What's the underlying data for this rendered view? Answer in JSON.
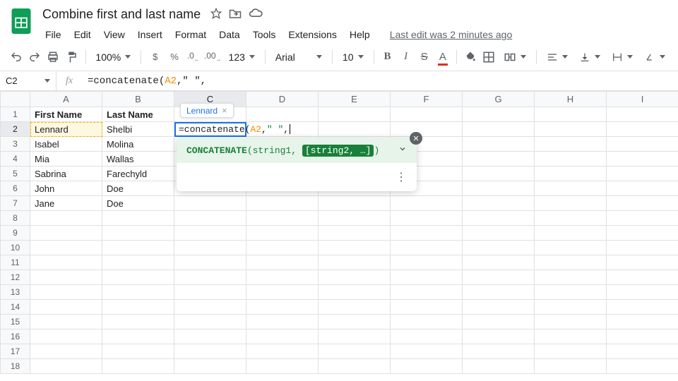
{
  "header": {
    "doc_title": "Combine first and last name",
    "menus": [
      "File",
      "Edit",
      "View",
      "Insert",
      "Format",
      "Data",
      "Tools",
      "Extensions",
      "Help"
    ],
    "last_edit": "Last edit was 2 minutes ago"
  },
  "toolbar": {
    "zoom": "100%",
    "currency": "$",
    "percent": "%",
    "dec_dec": ".0",
    "inc_dec": ".00",
    "num_format": "123",
    "font": "Arial",
    "font_size": "10"
  },
  "formula_bar": {
    "cell_ref": "C2",
    "prefix": "=concatenate(",
    "ref": "A2",
    "suffix": ",\" \","
  },
  "grid": {
    "columns": [
      "A",
      "B",
      "C",
      "D",
      "E",
      "F",
      "G",
      "H",
      "I"
    ],
    "row_count": 18,
    "headers": {
      "A1": "First Name",
      "B1": "Last Name"
    },
    "data": [
      {
        "A": "Lennard",
        "B": "Shelbi"
      },
      {
        "A": "Isabel",
        "B": "Molina"
      },
      {
        "A": "Mia",
        "B": "Wallas"
      },
      {
        "A": "Sabrina",
        "B": "Farechyld"
      },
      {
        "A": "John",
        "B": "Doe"
      },
      {
        "A": "Jane",
        "B": "Doe"
      }
    ],
    "active_cell": "C2",
    "referenced_cell": "A2",
    "cell_editor": {
      "prefix": "=concatenate(",
      "ref": "A2",
      "mid": ",",
      "str": "\" \"",
      "tail": ","
    }
  },
  "tooltip": {
    "text": "Lennard",
    "close": "×"
  },
  "help": {
    "fn_name": "CONCATENATE",
    "args_prefix": "(string1, ",
    "arg_active": "[string2, …]",
    "args_suffix": ")"
  },
  "colors": {
    "accent": "#1a73e8",
    "ref_color": "#f28b00",
    "help_bg": "#e6f4ea",
    "help_fg": "#188038"
  }
}
